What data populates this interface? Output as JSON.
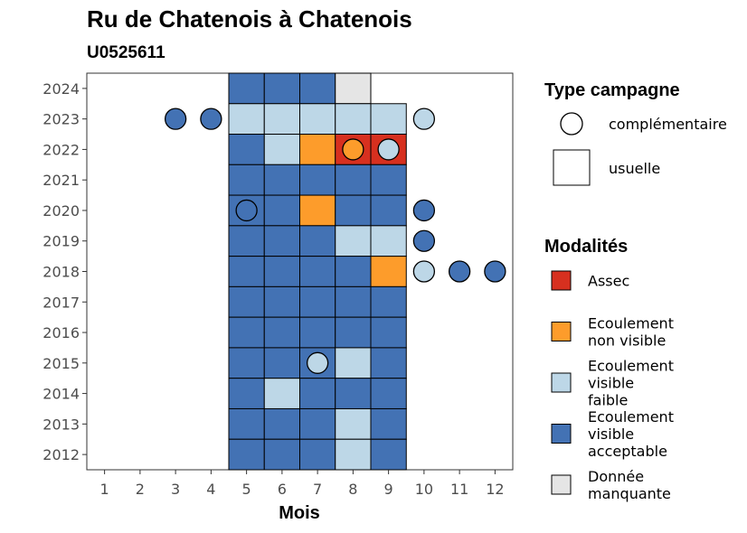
{
  "colors": {
    "Assec": "#d7301f",
    "Ecoulement non visible": "#fd9c2b",
    "Ecoulement visible faible": "#bdd7e7",
    "Ecoulement visible acceptable": "#4372b4",
    "Donnée manquante": "#e5e5e5"
  },
  "chart_data": {
    "type": "heatmap",
    "title": "Ru de Chatenois à Chatenois",
    "subtitle": "U0525611",
    "xlabel": "Mois",
    "ylabel": "",
    "x_ticks": [
      "1",
      "2",
      "3",
      "4",
      "5",
      "6",
      "7",
      "8",
      "9",
      "10",
      "11",
      "12"
    ],
    "y_ticks": [
      "2024",
      "2023",
      "2022",
      "2021",
      "2020",
      "2019",
      "2018",
      "2017",
      "2016",
      "2015",
      "2014",
      "2013",
      "2012"
    ],
    "xlim": [
      0.5,
      12.5
    ],
    "ylim": [
      2011.5,
      2024.5
    ],
    "legend_shape": {
      "title": "Type campagne",
      "items": [
        {
          "label": "complémentaire",
          "shape": "circle"
        },
        {
          "label": "usuelle",
          "shape": "square"
        }
      ]
    },
    "legend_modalites": {
      "title": "Modalités",
      "items": [
        {
          "key": "Assec",
          "lines": [
            "Assec"
          ]
        },
        {
          "key": "Ecoulement non visible",
          "lines": [
            "Ecoulement",
            "non visible"
          ]
        },
        {
          "key": "Ecoulement visible faible",
          "lines": [
            "Ecoulement",
            "visible",
            "faible"
          ]
        },
        {
          "key": "Ecoulement visible acceptable",
          "lines": [
            "Ecoulement",
            "visible",
            "acceptable"
          ]
        },
        {
          "key": "Donnée manquante",
          "lines": [
            "Donnée",
            "manquante"
          ]
        }
      ]
    },
    "usuelle": [
      {
        "year": 2024,
        "month": 5,
        "value": "Ecoulement visible acceptable"
      },
      {
        "year": 2024,
        "month": 6,
        "value": "Ecoulement visible acceptable"
      },
      {
        "year": 2024,
        "month": 7,
        "value": "Ecoulement visible acceptable"
      },
      {
        "year": 2024,
        "month": 8,
        "value": "Donnée manquante"
      },
      {
        "year": 2023,
        "month": 5,
        "value": "Ecoulement visible faible"
      },
      {
        "year": 2023,
        "month": 6,
        "value": "Ecoulement visible faible"
      },
      {
        "year": 2023,
        "month": 7,
        "value": "Ecoulement visible faible"
      },
      {
        "year": 2023,
        "month": 8,
        "value": "Ecoulement visible faible"
      },
      {
        "year": 2023,
        "month": 9,
        "value": "Ecoulement visible faible"
      },
      {
        "year": 2022,
        "month": 5,
        "value": "Ecoulement visible acceptable"
      },
      {
        "year": 2022,
        "month": 6,
        "value": "Ecoulement visible faible"
      },
      {
        "year": 2022,
        "month": 7,
        "value": "Ecoulement non visible"
      },
      {
        "year": 2022,
        "month": 8,
        "value": "Assec"
      },
      {
        "year": 2022,
        "month": 9,
        "value": "Assec"
      },
      {
        "year": 2021,
        "month": 5,
        "value": "Ecoulement visible acceptable"
      },
      {
        "year": 2021,
        "month": 6,
        "value": "Ecoulement visible acceptable"
      },
      {
        "year": 2021,
        "month": 7,
        "value": "Ecoulement visible acceptable"
      },
      {
        "year": 2021,
        "month": 8,
        "value": "Ecoulement visible acceptable"
      },
      {
        "year": 2021,
        "month": 9,
        "value": "Ecoulement visible acceptable"
      },
      {
        "year": 2020,
        "month": 5,
        "value": "Ecoulement visible acceptable"
      },
      {
        "year": 2020,
        "month": 6,
        "value": "Ecoulement visible acceptable"
      },
      {
        "year": 2020,
        "month": 7,
        "value": "Ecoulement non visible"
      },
      {
        "year": 2020,
        "month": 8,
        "value": "Ecoulement visible acceptable"
      },
      {
        "year": 2020,
        "month": 9,
        "value": "Ecoulement visible acceptable"
      },
      {
        "year": 2019,
        "month": 5,
        "value": "Ecoulement visible acceptable"
      },
      {
        "year": 2019,
        "month": 6,
        "value": "Ecoulement visible acceptable"
      },
      {
        "year": 2019,
        "month": 7,
        "value": "Ecoulement visible acceptable"
      },
      {
        "year": 2019,
        "month": 8,
        "value": "Ecoulement visible faible"
      },
      {
        "year": 2019,
        "month": 9,
        "value": "Ecoulement visible faible"
      },
      {
        "year": 2018,
        "month": 5,
        "value": "Ecoulement visible acceptable"
      },
      {
        "year": 2018,
        "month": 6,
        "value": "Ecoulement visible acceptable"
      },
      {
        "year": 2018,
        "month": 7,
        "value": "Ecoulement visible acceptable"
      },
      {
        "year": 2018,
        "month": 8,
        "value": "Ecoulement visible acceptable"
      },
      {
        "year": 2018,
        "month": 9,
        "value": "Ecoulement non visible"
      },
      {
        "year": 2017,
        "month": 5,
        "value": "Ecoulement visible acceptable"
      },
      {
        "year": 2017,
        "month": 6,
        "value": "Ecoulement visible acceptable"
      },
      {
        "year": 2017,
        "month": 7,
        "value": "Ecoulement visible acceptable"
      },
      {
        "year": 2017,
        "month": 8,
        "value": "Ecoulement visible acceptable"
      },
      {
        "year": 2017,
        "month": 9,
        "value": "Ecoulement visible acceptable"
      },
      {
        "year": 2016,
        "month": 5,
        "value": "Ecoulement visible acceptable"
      },
      {
        "year": 2016,
        "month": 6,
        "value": "Ecoulement visible acceptable"
      },
      {
        "year": 2016,
        "month": 7,
        "value": "Ecoulement visible acceptable"
      },
      {
        "year": 2016,
        "month": 8,
        "value": "Ecoulement visible acceptable"
      },
      {
        "year": 2016,
        "month": 9,
        "value": "Ecoulement visible acceptable"
      },
      {
        "year": 2015,
        "month": 5,
        "value": "Ecoulement visible acceptable"
      },
      {
        "year": 2015,
        "month": 6,
        "value": "Ecoulement visible acceptable"
      },
      {
        "year": 2015,
        "month": 7,
        "value": "Ecoulement visible acceptable"
      },
      {
        "year": 2015,
        "month": 8,
        "value": "Ecoulement visible faible"
      },
      {
        "year": 2015,
        "month": 9,
        "value": "Ecoulement visible acceptable"
      },
      {
        "year": 2014,
        "month": 5,
        "value": "Ecoulement visible acceptable"
      },
      {
        "year": 2014,
        "month": 6,
        "value": "Ecoulement visible faible"
      },
      {
        "year": 2014,
        "month": 7,
        "value": "Ecoulement visible acceptable"
      },
      {
        "year": 2014,
        "month": 8,
        "value": "Ecoulement visible acceptable"
      },
      {
        "year": 2014,
        "month": 9,
        "value": "Ecoulement visible acceptable"
      },
      {
        "year": 2013,
        "month": 5,
        "value": "Ecoulement visible acceptable"
      },
      {
        "year": 2013,
        "month": 6,
        "value": "Ecoulement visible acceptable"
      },
      {
        "year": 2013,
        "month": 7,
        "value": "Ecoulement visible acceptable"
      },
      {
        "year": 2013,
        "month": 8,
        "value": "Ecoulement visible faible"
      },
      {
        "year": 2013,
        "month": 9,
        "value": "Ecoulement visible acceptable"
      },
      {
        "year": 2012,
        "month": 5,
        "value": "Ecoulement visible acceptable"
      },
      {
        "year": 2012,
        "month": 6,
        "value": "Ecoulement visible acceptable"
      },
      {
        "year": 2012,
        "month": 7,
        "value": "Ecoulement visible acceptable"
      },
      {
        "year": 2012,
        "month": 8,
        "value": "Ecoulement visible faible"
      },
      {
        "year": 2012,
        "month": 9,
        "value": "Ecoulement visible acceptable"
      }
    ],
    "complementaire": [
      {
        "year": 2023,
        "month": 3,
        "value": "Ecoulement visible acceptable"
      },
      {
        "year": 2023,
        "month": 4,
        "value": "Ecoulement visible acceptable"
      },
      {
        "year": 2023,
        "month": 10,
        "value": "Ecoulement visible faible"
      },
      {
        "year": 2022,
        "month": 8,
        "value": "Ecoulement non visible"
      },
      {
        "year": 2022,
        "month": 9,
        "value": "Ecoulement visible faible"
      },
      {
        "year": 2020,
        "month": 5,
        "value": "Ecoulement visible acceptable"
      },
      {
        "year": 2020,
        "month": 10,
        "value": "Ecoulement visible acceptable"
      },
      {
        "year": 2019,
        "month": 10,
        "value": "Ecoulement visible acceptable"
      },
      {
        "year": 2018,
        "month": 10,
        "value": "Ecoulement visible faible"
      },
      {
        "year": 2018,
        "month": 11,
        "value": "Ecoulement visible acceptable"
      },
      {
        "year": 2018,
        "month": 12,
        "value": "Ecoulement visible acceptable"
      },
      {
        "year": 2015,
        "month": 7,
        "value": "Ecoulement visible faible"
      }
    ]
  }
}
